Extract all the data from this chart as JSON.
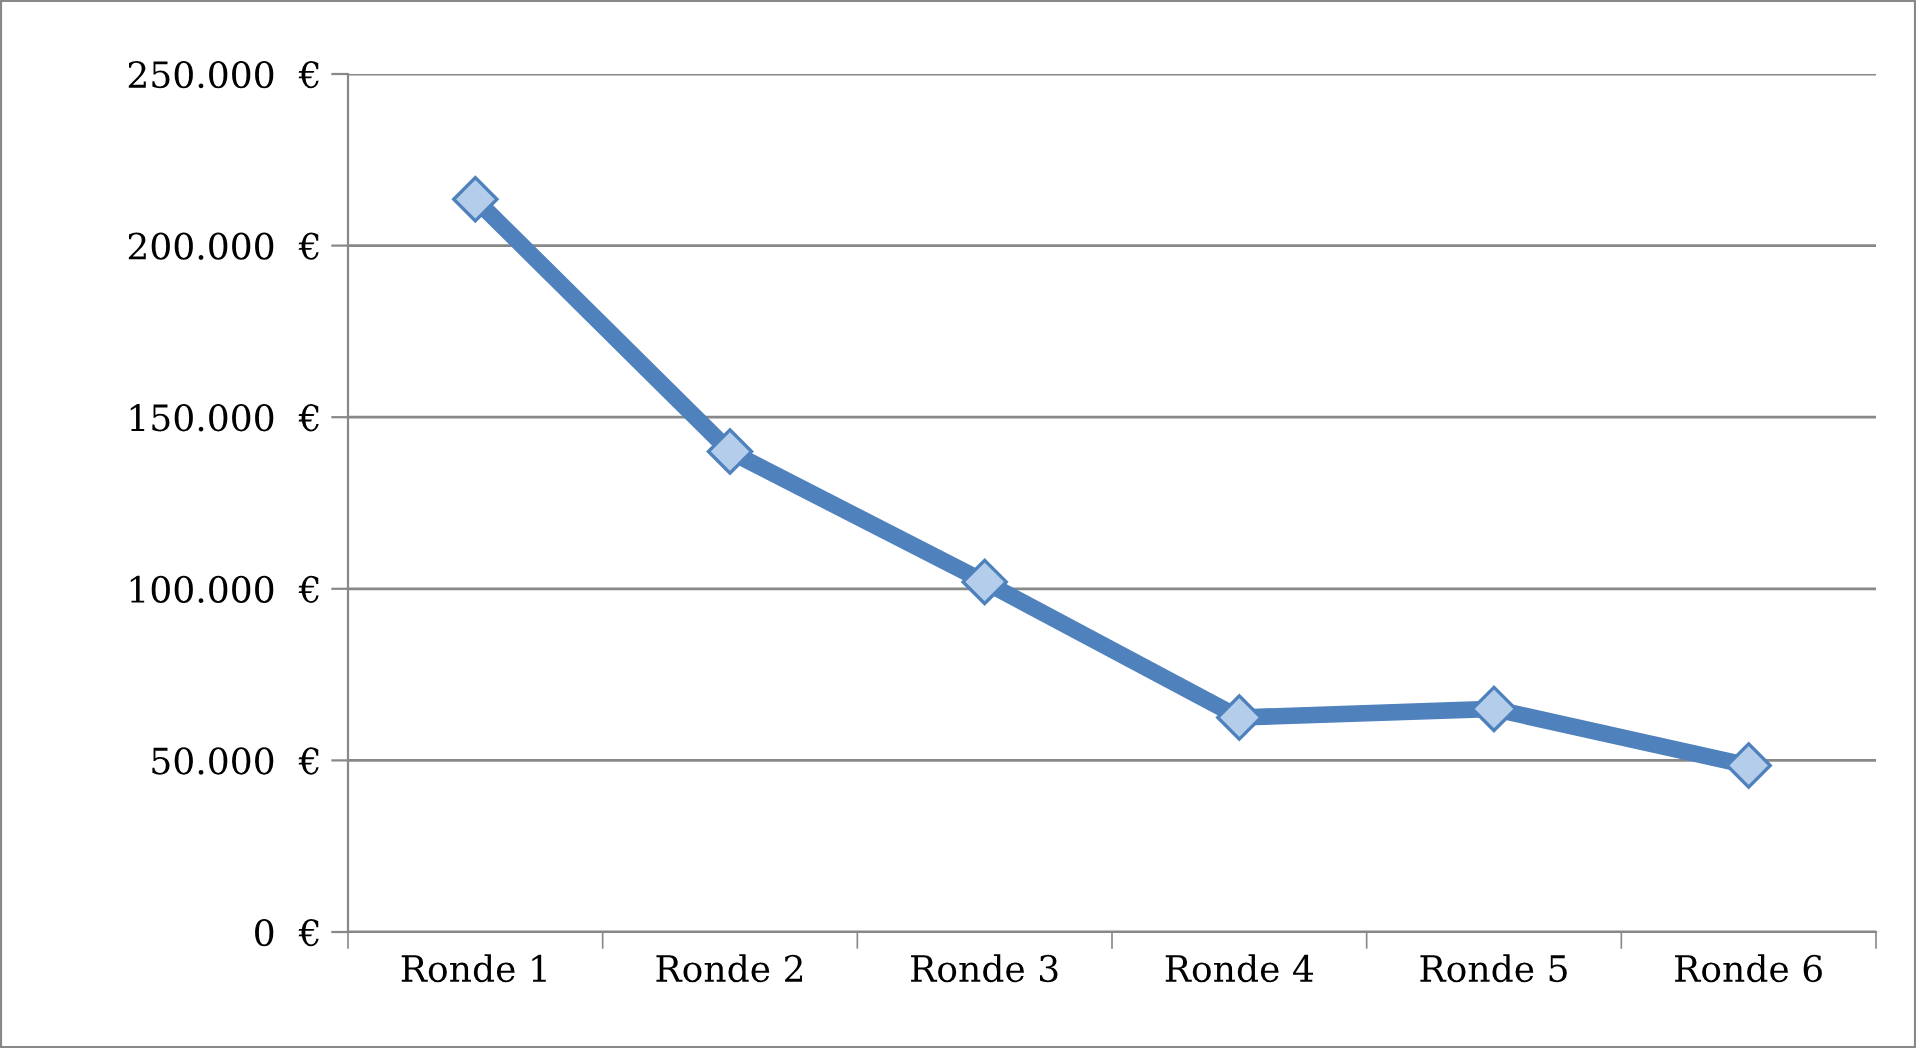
{
  "chart_data": {
    "type": "line",
    "categories": [
      "Ronde 1",
      "Ronde 2",
      "Ronde 3",
      "Ronde 4",
      "Ronde 5",
      "Ronde 6"
    ],
    "series": [
      {
        "color": "#4f81bd",
        "values": [
          213500,
          140000,
          102000,
          62500,
          65000,
          48500
        ]
      }
    ],
    "ylim": [
      0,
      250000
    ],
    "yticks": [
      {
        "value": 0,
        "label": "0  €"
      },
      {
        "value": 50000,
        "label": "50.000  €"
      },
      {
        "value": 100000,
        "label": "100.000  €"
      },
      {
        "value": 150000,
        "label": "150.000  €"
      },
      {
        "value": 200000,
        "label": "200.000  €"
      },
      {
        "value": 250000,
        "label": "250.000  €"
      }
    ],
    "grid": "y",
    "marker": "diamond",
    "line_style": "solid",
    "legend": false
  }
}
